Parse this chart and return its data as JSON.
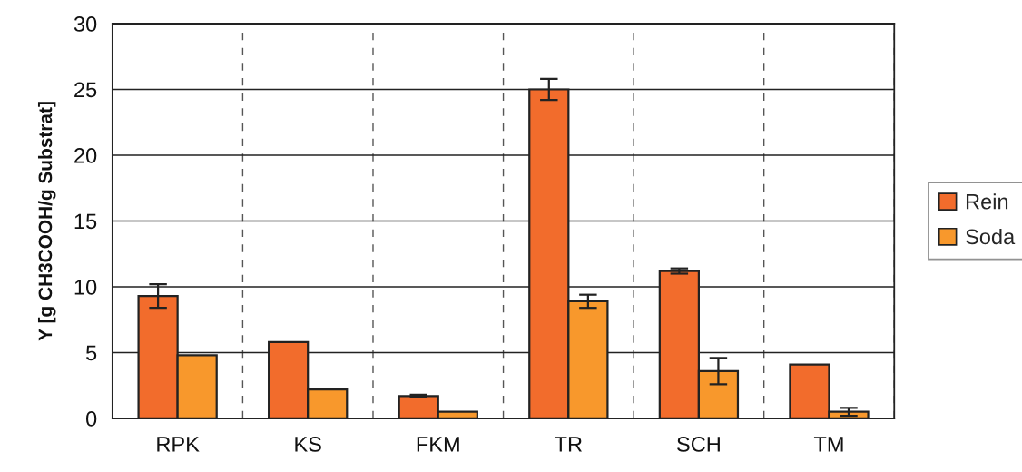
{
  "chart_data": {
    "type": "bar",
    "ylabel": "Y [g CH3COOH/g Substrat]",
    "categories": [
      "RPK",
      "KS",
      "FKM",
      "TR",
      "SCH",
      "TM"
    ],
    "series": [
      {
        "name": "Rein",
        "color": "#f26c2c",
        "values": [
          9.3,
          5.8,
          1.7,
          25.0,
          11.2,
          4.1
        ],
        "errors": [
          0.9,
          null,
          0.1,
          0.8,
          0.2,
          null
        ]
      },
      {
        "name": "Soda",
        "color": "#f8982c",
        "values": [
          4.8,
          2.2,
          0.5,
          8.9,
          3.6,
          0.5
        ],
        "errors": [
          null,
          null,
          null,
          0.5,
          1.0,
          0.3
        ]
      }
    ],
    "ylim": [
      0,
      30
    ],
    "yticks": [
      0,
      5,
      10,
      15,
      20,
      25,
      30
    ],
    "grid": true,
    "legend": "right"
  }
}
